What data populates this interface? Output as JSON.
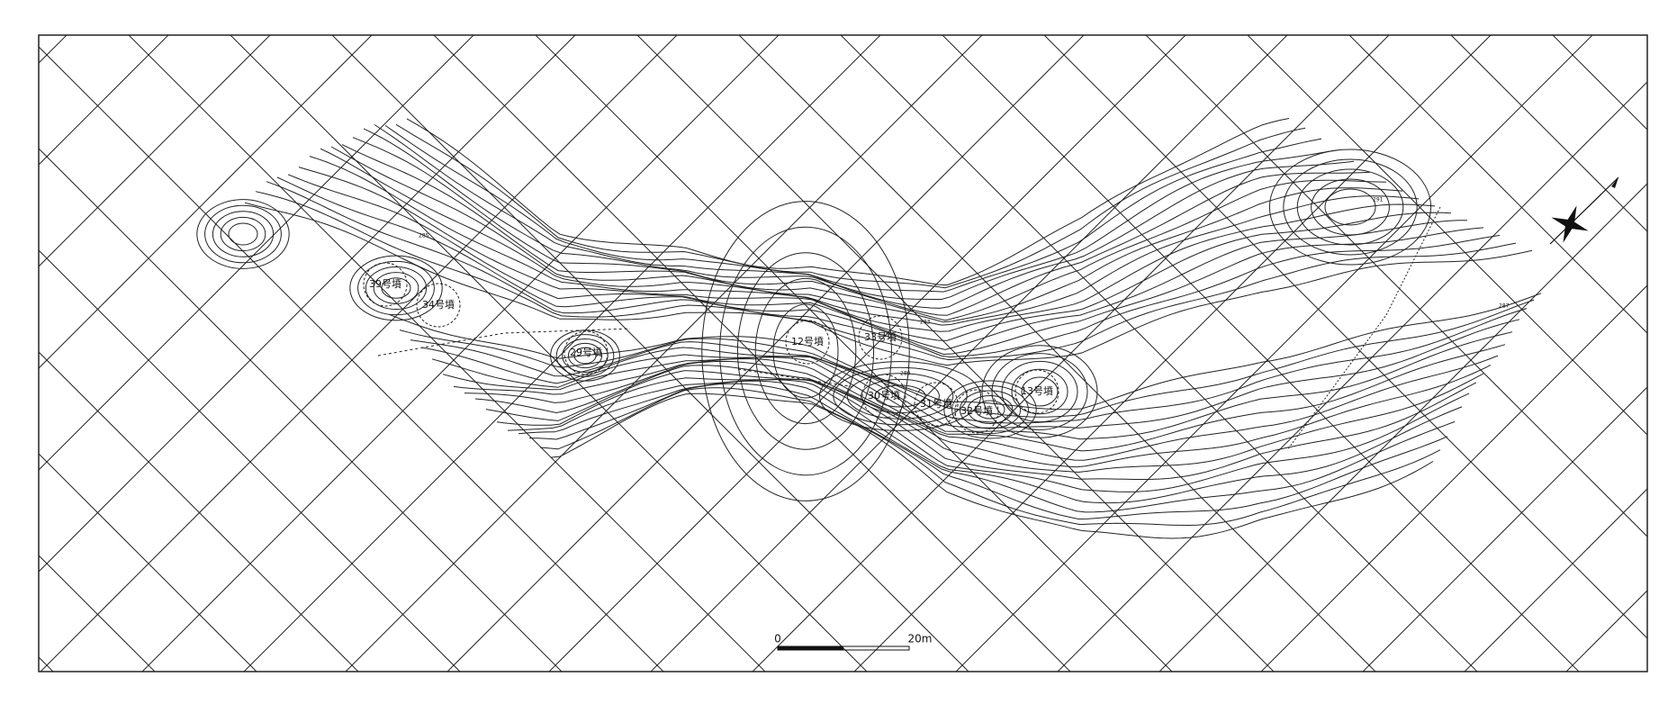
{
  "mounds": [
    {
      "label": "39号墳"
    },
    {
      "label": "34号墳"
    },
    {
      "label": "29号墳"
    },
    {
      "label": "12号墳"
    },
    {
      "label": "33号墳"
    },
    {
      "label": "30号墳"
    },
    {
      "label": "31号墳"
    },
    {
      "label": "32号墳"
    },
    {
      "label": "13号墳"
    }
  ],
  "scale_bar": {
    "start": "0",
    "end": "20m"
  },
  "contour_labels": [
    "283",
    "285",
    "287",
    "289",
    "291"
  ]
}
